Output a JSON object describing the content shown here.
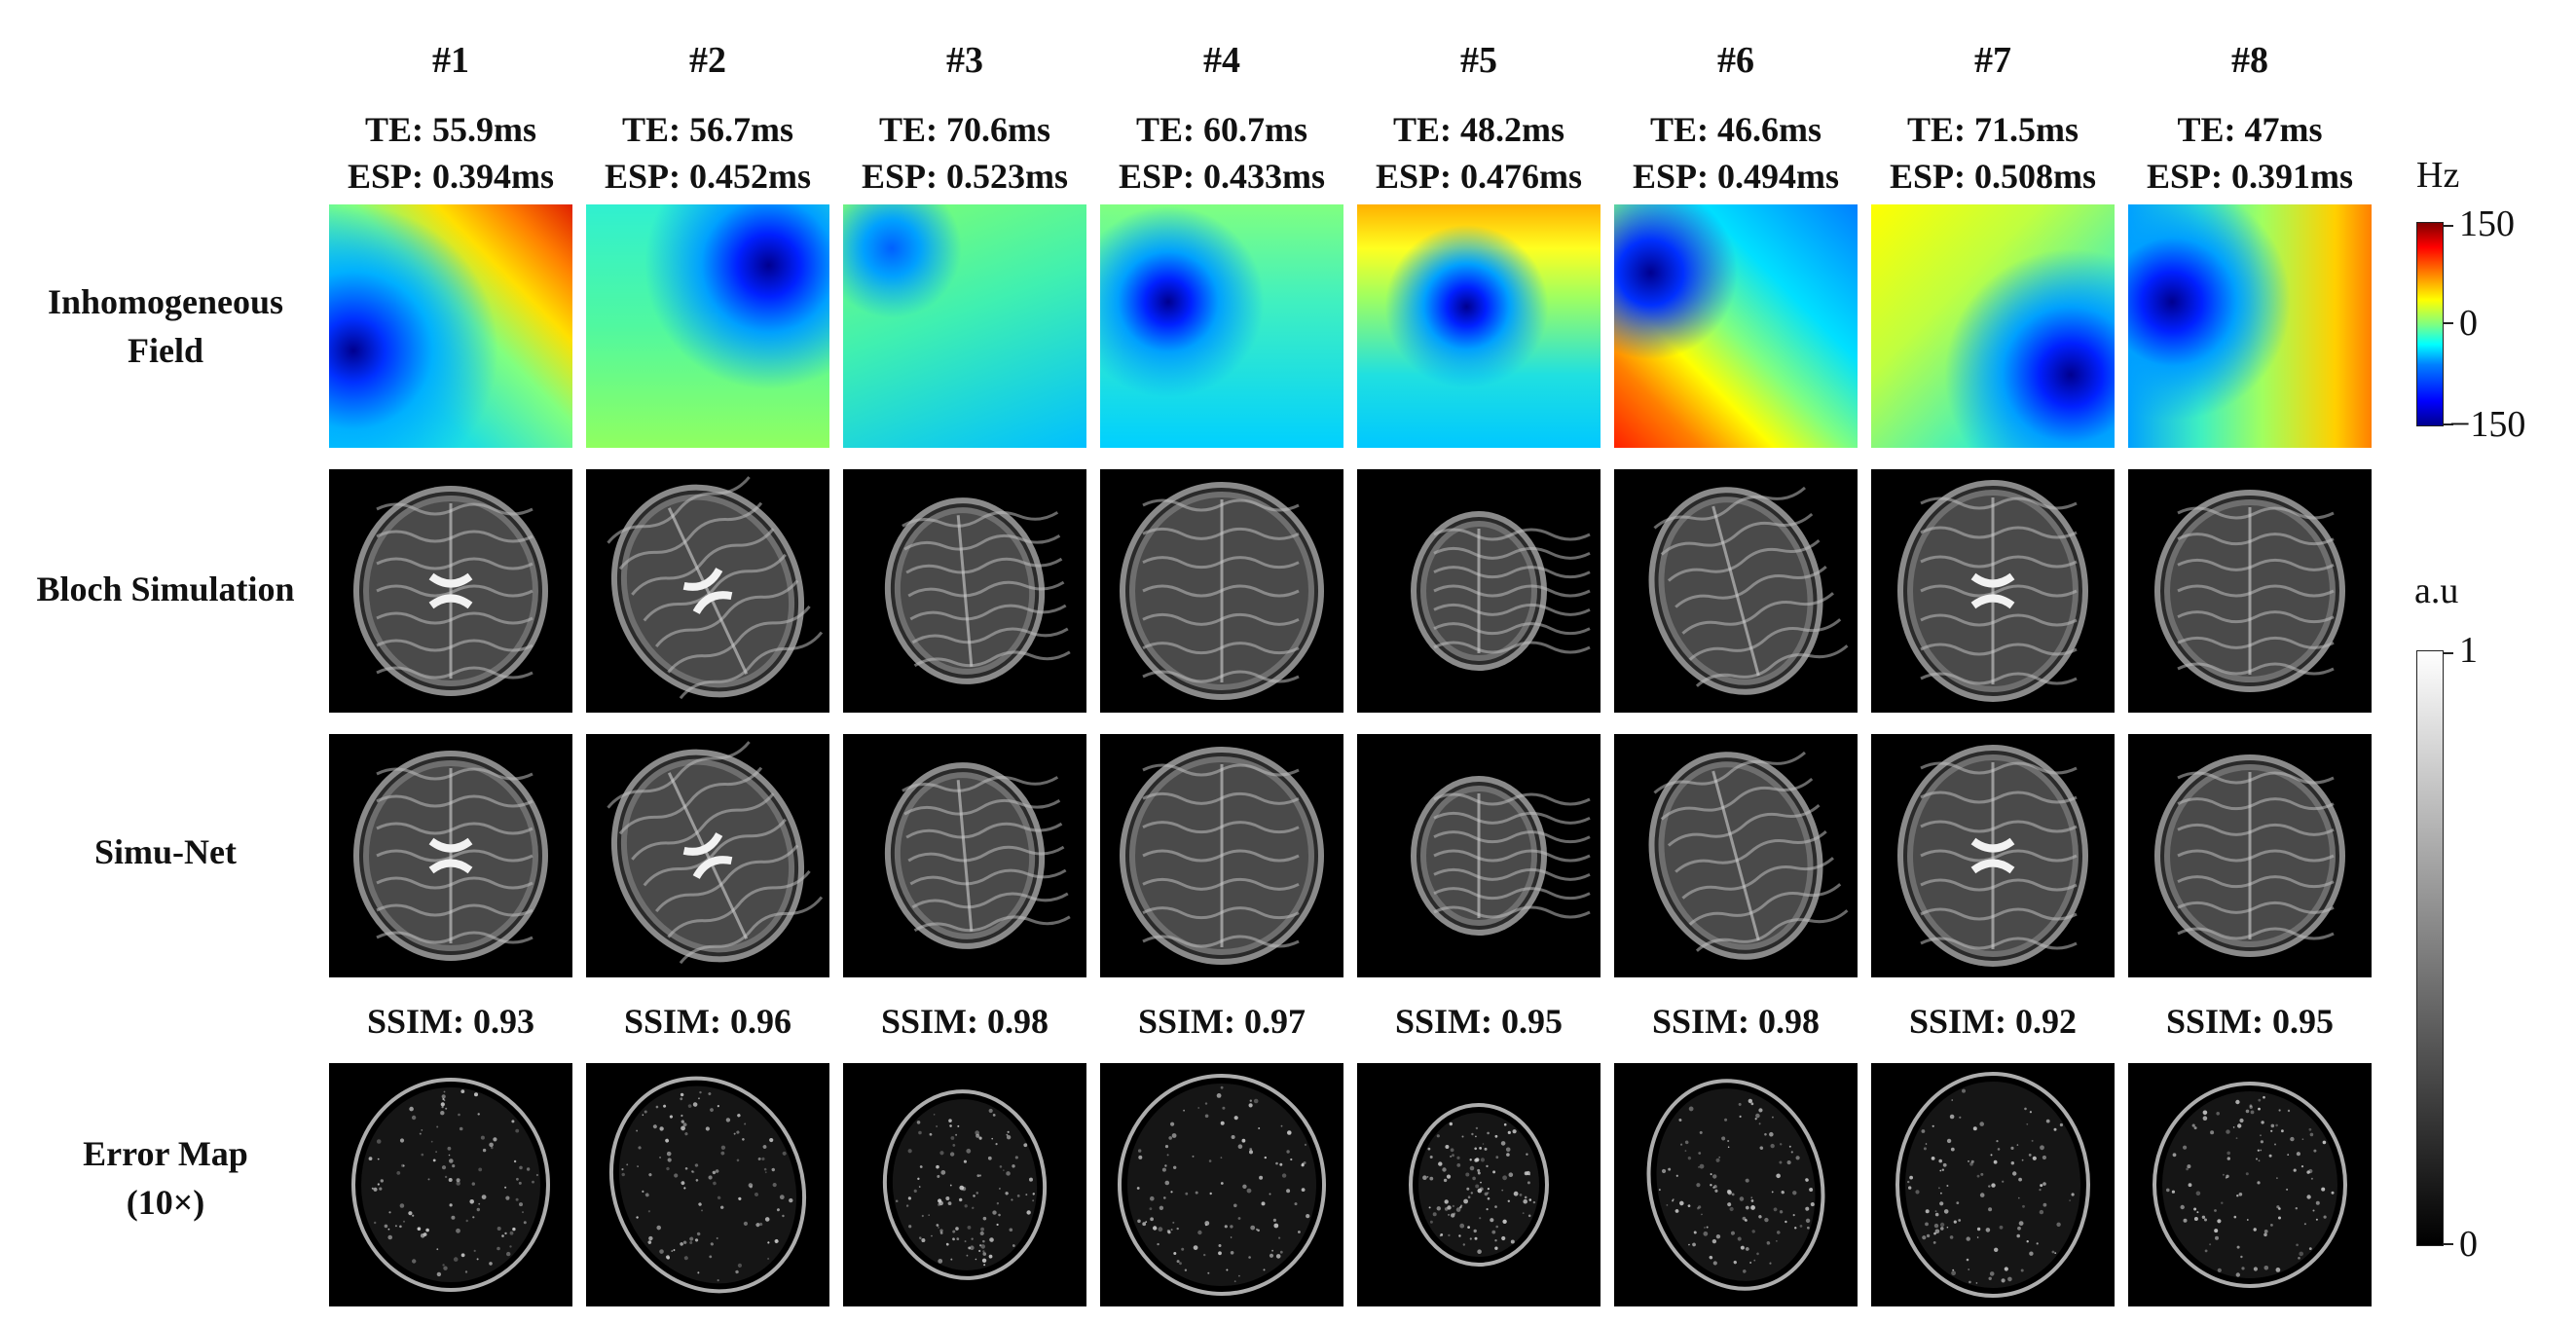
{
  "columns": [
    {
      "id": "#1",
      "te": "TE: 55.9ms",
      "esp": "ESP: 0.394ms",
      "ssim": "SSIM: 0.93"
    },
    {
      "id": "#2",
      "te": "TE: 56.7ms",
      "esp": "ESP: 0.452ms",
      "ssim": "SSIM: 0.96"
    },
    {
      "id": "#3",
      "te": "TE: 70.6ms",
      "esp": "ESP: 0.523ms",
      "ssim": "SSIM: 0.98"
    },
    {
      "id": "#4",
      "te": "TE: 60.7ms",
      "esp": "ESP: 0.433ms",
      "ssim": "SSIM: 0.97"
    },
    {
      "id": "#5",
      "te": "TE: 48.2ms",
      "esp": "ESP: 0.476ms",
      "ssim": "SSIM: 0.95"
    },
    {
      "id": "#6",
      "te": "TE: 46.6ms",
      "esp": "ESP: 0.494ms",
      "ssim": "SSIM: 0.98"
    },
    {
      "id": "#7",
      "te": "TE: 71.5ms",
      "esp": "ESP: 0.508ms",
      "ssim": "SSIM: 0.92"
    },
    {
      "id": "#8",
      "te": "TE: 47ms",
      "esp": "ESP: 0.391ms",
      "ssim": "SSIM: 0.95"
    }
  ],
  "rows": {
    "field_line1": "Inhomogeneous",
    "field_line2": "Field",
    "bloch": "Bloch Simulation",
    "simunet": "Simu-Net",
    "error_line1": "Error Map",
    "error_line2": "(10×)"
  },
  "field_colorbar": {
    "unit": "Hz",
    "ticks": [
      "150",
      "0",
      "−150"
    ],
    "colormap": "jet"
  },
  "gray_colorbar": {
    "unit": "a.u",
    "ticks": [
      "1",
      "0"
    ],
    "colormap": "gray"
  }
}
